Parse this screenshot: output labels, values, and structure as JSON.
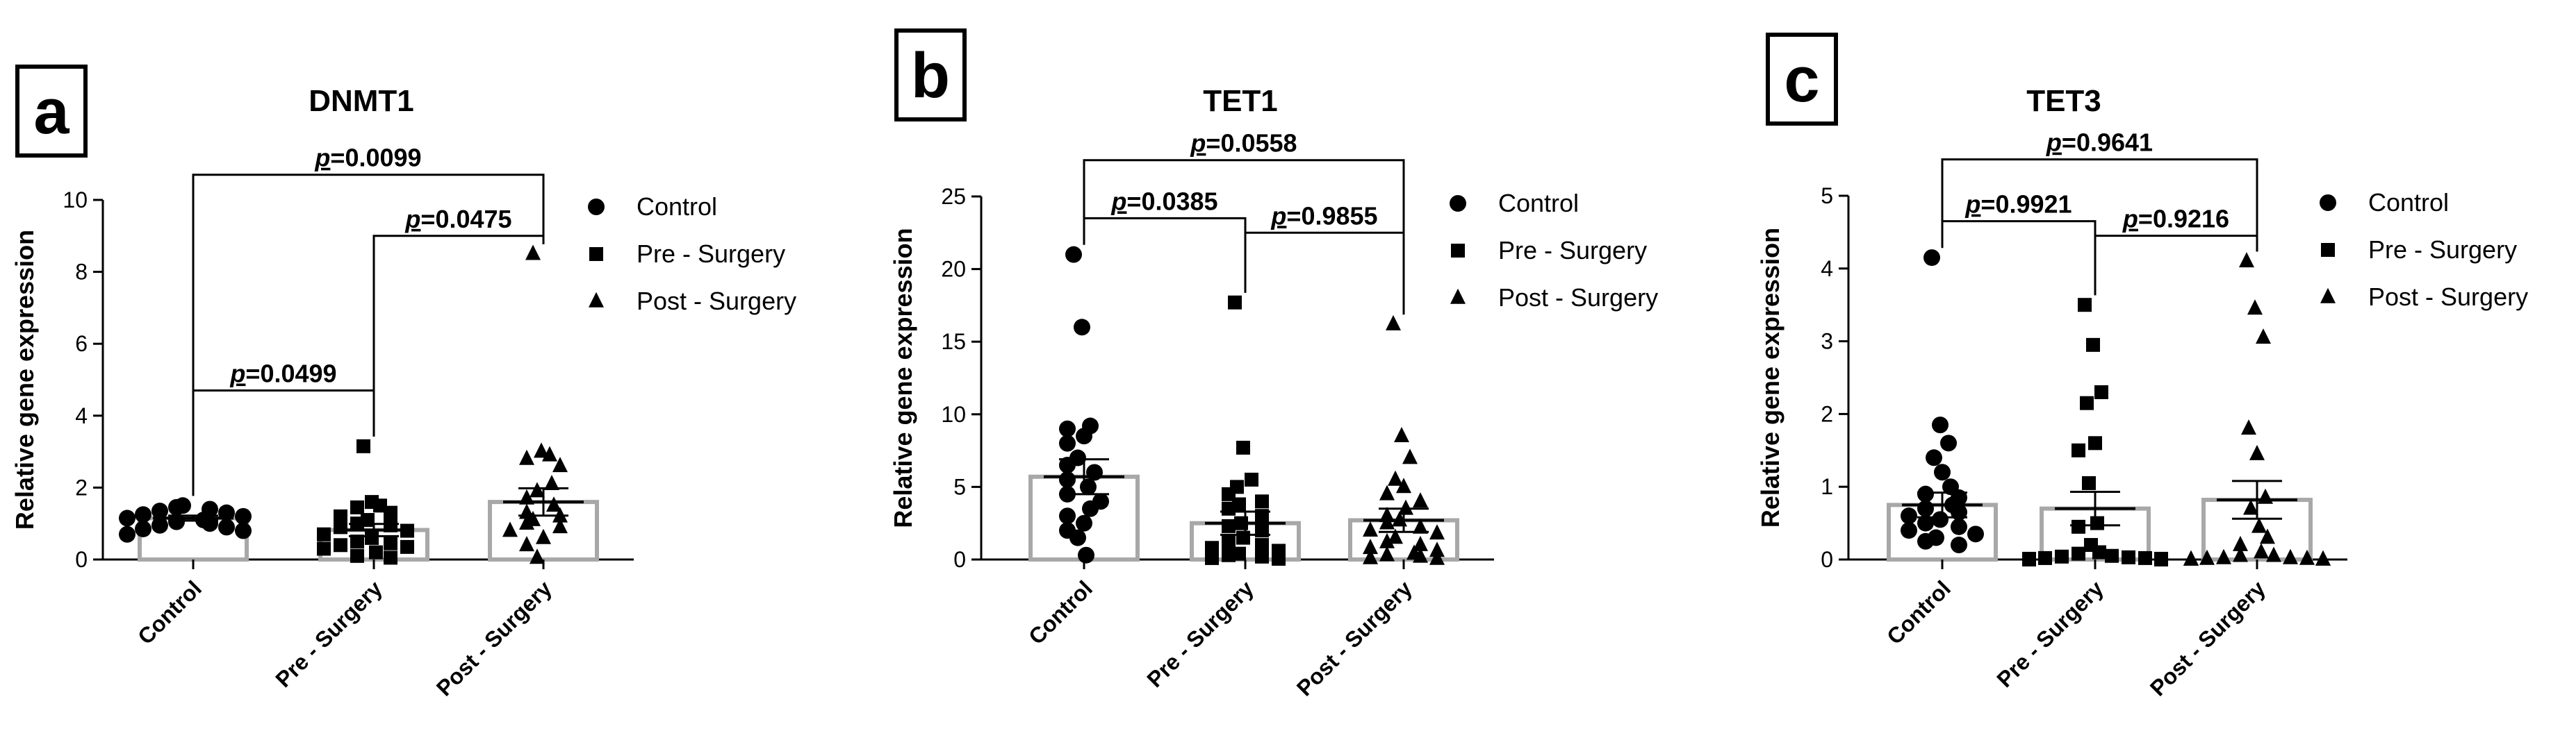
{
  "figure": "Relative gene expression of DNMT1, TET1 and TET3 in Control, Pre-Surgery and Post-Surgery groups",
  "chart_data": [
    {
      "type": "scatter",
      "panel": "a",
      "title": "DNMT1",
      "xlabel": "",
      "ylabel": "Relative gene expression",
      "ylim": [
        0,
        10
      ],
      "yticks": [
        0,
        2,
        4,
        6,
        8,
        10
      ],
      "categories": [
        "Control",
        "Pre - Surgery",
        "Post - Surgery"
      ],
      "legend": [
        "Control",
        "Pre - Surgery",
        "Post - Surgery"
      ],
      "legend_position": "right",
      "bars": [
        {
          "name": "Control",
          "mean": 1.15,
          "sem": 0.07
        },
        {
          "name": "Pre - Surgery",
          "mean": 0.82,
          "sem": 0.17
        },
        {
          "name": "Post - Surgery",
          "mean": 1.6,
          "sem": 0.38
        }
      ],
      "series": [
        {
          "name": "Control",
          "marker": "circle",
          "values": [
            1.5,
            1.45,
            1.4,
            1.35,
            1.3,
            1.25,
            1.2,
            1.15,
            1.1,
            1.05,
            1.0,
            0.95,
            0.9,
            0.85,
            0.8,
            0.7
          ]
        },
        {
          "name": "Pre - Surgery",
          "marker": "square",
          "values": [
            3.15,
            1.6,
            1.5,
            1.45,
            1.3,
            1.2,
            1.1,
            1.0,
            0.95,
            0.9,
            0.8,
            0.7,
            0.6,
            0.5,
            0.45,
            0.4,
            0.35,
            0.3,
            0.2,
            0.1,
            0.05
          ]
        },
        {
          "name": "Post - Surgery",
          "marker": "triangle",
          "values": [
            8.5,
            3.0,
            2.9,
            2.8,
            2.6,
            2.1,
            1.9,
            1.7,
            1.5,
            1.3,
            1.2,
            1.1,
            1.0,
            0.9,
            0.8,
            0.6,
            0.4,
            0.05
          ]
        }
      ],
      "comparisons": [
        {
          "from": 0,
          "to": 1,
          "label": "=0.0499",
          "y": 4.7
        },
        {
          "from": 1,
          "to": 2,
          "label": "=0.0475",
          "y": 9.0
        },
        {
          "from": 0,
          "to": 2,
          "label": "=0.0099",
          "y": 10.7
        }
      ]
    },
    {
      "type": "scatter",
      "panel": "b",
      "title": "TET1",
      "xlabel": "",
      "ylabel": "Relative gene expression",
      "ylim": [
        0,
        25
      ],
      "yticks": [
        0,
        5,
        10,
        15,
        20,
        25
      ],
      "categories": [
        "Control",
        "Pre - Surgery",
        "Post - Surgery"
      ],
      "legend": [
        "Control",
        "Pre - Surgery",
        "Post - Surgery"
      ],
      "legend_position": "right",
      "bars": [
        {
          "name": "Control",
          "mean": 5.7,
          "sem": 1.2
        },
        {
          "name": "Pre - Surgery",
          "mean": 2.5,
          "sem": 0.8
        },
        {
          "name": "Post - Surgery",
          "mean": 2.7,
          "sem": 0.8
        }
      ],
      "series": [
        {
          "name": "Control",
          "marker": "circle",
          "values": [
            21.0,
            16.0,
            9.2,
            9.0,
            8.5,
            8.0,
            7.0,
            6.5,
            6.0,
            5.5,
            5.0,
            4.5,
            4.0,
            3.5,
            3.0,
            2.5,
            2.0,
            1.5,
            0.3
          ]
        },
        {
          "name": "Pre - Surgery",
          "marker": "square",
          "values": [
            17.7,
            7.7,
            5.5,
            5.0,
            4.5,
            4.0,
            3.8,
            3.5,
            3.0,
            2.5,
            2.3,
            2.0,
            1.5,
            1.2,
            1.0,
            0.8,
            0.6,
            0.4,
            0.3,
            0.2,
            0.1,
            0.05
          ]
        },
        {
          "name": "Post - Surgery",
          "marker": "triangle",
          "values": [
            16.2,
            8.5,
            7.0,
            5.5,
            5.0,
            4.5,
            4.0,
            3.5,
            3.0,
            2.7,
            2.5,
            2.2,
            2.0,
            1.8,
            1.5,
            1.2,
            1.0,
            0.8,
            0.6,
            0.4,
            0.3,
            0.2,
            0.1,
            0.05
          ]
        }
      ],
      "comparisons": [
        {
          "from": 0,
          "to": 1,
          "label": "=0.0385",
          "y": 23.5
        },
        {
          "from": 1,
          "to": 2,
          "label": "=0.9855",
          "y": 22.5
        },
        {
          "from": 0,
          "to": 2,
          "label": "=0.0558",
          "y": 27.5
        }
      ]
    },
    {
      "type": "scatter",
      "panel": "c",
      "title": "TET3",
      "xlabel": "",
      "ylabel": "Relative gene expression",
      "ylim": [
        0,
        5
      ],
      "yticks": [
        0,
        1,
        2,
        3,
        4,
        5
      ],
      "categories": [
        "Control",
        "Pre - Surgery",
        "Post - Surgery"
      ],
      "legend": [
        "Control",
        "Pre - Surgery",
        "Post - Surgery"
      ],
      "legend_position": "right",
      "bars": [
        {
          "name": "Control",
          "mean": 0.75,
          "sem": 0.17
        },
        {
          "name": "Pre - Surgery",
          "mean": 0.7,
          "sem": 0.23
        },
        {
          "name": "Post - Surgery",
          "mean": 0.82,
          "sem": 0.26
        }
      ],
      "series": [
        {
          "name": "Control",
          "marker": "circle",
          "values": [
            4.15,
            1.85,
            1.6,
            1.4,
            1.2,
            1.0,
            0.9,
            0.85,
            0.75,
            0.7,
            0.65,
            0.6,
            0.55,
            0.5,
            0.45,
            0.4,
            0.35,
            0.3,
            0.25,
            0.2
          ]
        },
        {
          "name": "Pre - Surgery",
          "marker": "square",
          "values": [
            3.5,
            2.95,
            2.3,
            2.15,
            1.6,
            1.5,
            1.05,
            0.5,
            0.45,
            0.2,
            0.1,
            0.08,
            0.05,
            0.04,
            0.03,
            0.02,
            0.02,
            0.01,
            0.01,
            0.0,
            0.0,
            0.0,
            0.0
          ]
        },
        {
          "name": "Post - Surgery",
          "marker": "triangle",
          "values": [
            4.1,
            3.45,
            3.05,
            1.8,
            1.45,
            0.85,
            0.7,
            0.45,
            0.3,
            0.2,
            0.1,
            0.05,
            0.05,
            0.02,
            0.02,
            0.01,
            0.01,
            0.0,
            0.0,
            0.0,
            0.0,
            0.0
          ]
        }
      ],
      "comparisons": [
        {
          "from": 0,
          "to": 1,
          "label": "=0.9921",
          "y": 4.65
        },
        {
          "from": 1,
          "to": 2,
          "label": "=0.9216",
          "y": 4.45
        },
        {
          "from": 0,
          "to": 2,
          "label": "=0.9641",
          "y": 5.5
        }
      ]
    }
  ]
}
